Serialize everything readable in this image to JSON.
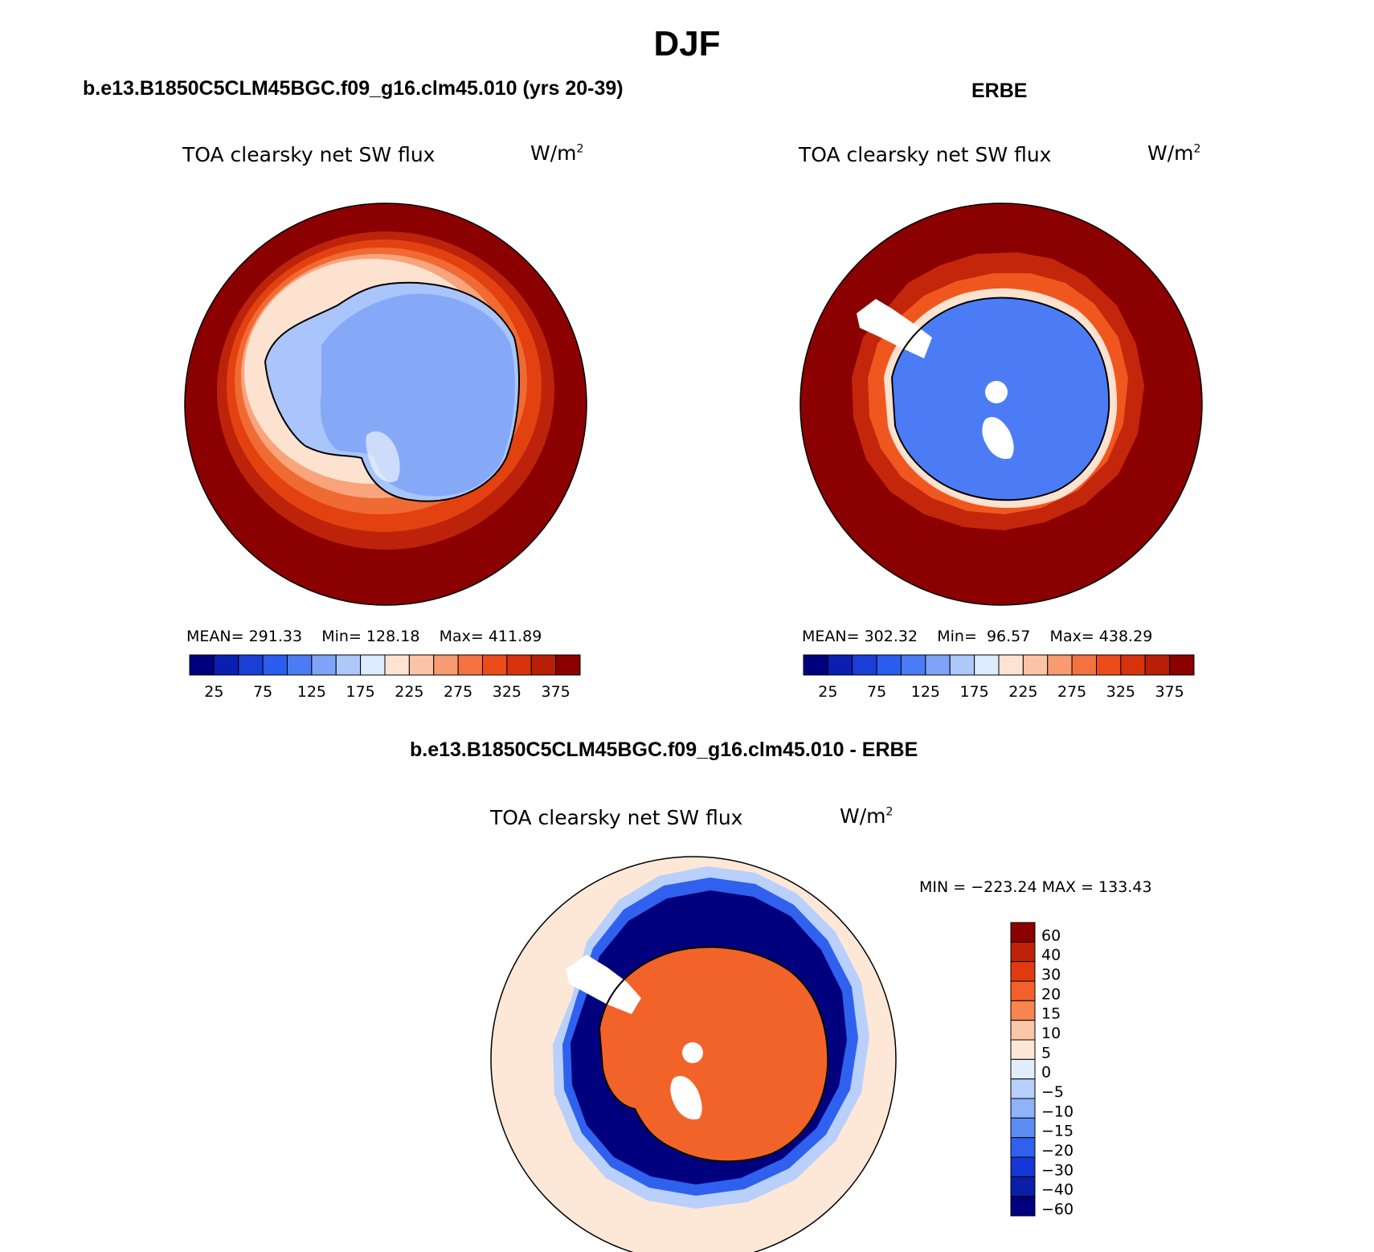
{
  "main_title": "DJF",
  "panels": [
    {
      "case_title": "b.e13.B1850C5CLM45BGC.f09_g16.clm45.010 (yrs 20-39)",
      "variable_label": "TOA clearsky net SW flux",
      "units": "W/m",
      "units_exponent": "2",
      "stats": {
        "mean_label": "MEAN=",
        "mean": "291.33",
        "min_label": "Min=",
        "min": "128.18",
        "max_label": "Max=",
        "max": "411.89"
      }
    },
    {
      "case_title": "ERBE",
      "variable_label": "TOA clearsky net SW flux",
      "units": "W/m",
      "units_exponent": "2",
      "stats": {
        "mean_label": "MEAN=",
        "mean": "302.32",
        "min_label": "Min=",
        "min": "96.57",
        "max_label": "Max=",
        "max": "438.29"
      }
    },
    {
      "case_title": "b.e13.B1850C5CLM45BGC.f09_g16.clm45.010 - ERBE",
      "variable_label": "TOA clearsky net SW flux",
      "units": "W/m",
      "units_exponent": "2",
      "stats_text": "MIN = −223.24 MAX = 133.43"
    }
  ],
  "chart_data": [
    {
      "type": "heatmap",
      "projection": "south polar stereographic",
      "colorbar": {
        "orientation": "horizontal",
        "tick_labels": [
          "25",
          "75",
          "125",
          "175",
          "225",
          "275",
          "325",
          "375"
        ],
        "levels": [
          25,
          50,
          75,
          100,
          125,
          150,
          175,
          200,
          225,
          250,
          275,
          300,
          325,
          350,
          375
        ],
        "colors": [
          "#00007f",
          "#0a1fb2",
          "#1a3fd6",
          "#2a5cf0",
          "#4c7cf5",
          "#7ea3f8",
          "#adc8fb",
          "#dcebfd",
          "#fde4d2",
          "#fcc4a6",
          "#f89a72",
          "#f4723f",
          "#ec4c1a",
          "#d6330d",
          "#b81f09",
          "#8b0000"
        ]
      },
      "field": {
        "ocean_max_zone": "#8b0000",
        "antarctic_interior": "#86a9f7",
        "coastal_band": [
          "#fce2d0",
          "#f9a47c",
          "#f06a34",
          "#d4300c"
        ]
      }
    },
    {
      "type": "heatmap",
      "projection": "south polar stereographic",
      "colorbar": {
        "orientation": "horizontal",
        "tick_labels": [
          "25",
          "75",
          "125",
          "175",
          "225",
          "275",
          "325",
          "375"
        ],
        "levels": [
          25,
          50,
          75,
          100,
          125,
          150,
          175,
          200,
          225,
          250,
          275,
          300,
          325,
          350,
          375
        ],
        "colors": [
          "#00007f",
          "#0a1fb2",
          "#1a3fd6",
          "#2a5cf0",
          "#4c7cf5",
          "#7ea3f8",
          "#adc8fb",
          "#dcebfd",
          "#fde4d2",
          "#fcc4a6",
          "#f89a72",
          "#f4723f",
          "#ec4c1a",
          "#d6330d",
          "#b81f09",
          "#8b0000"
        ]
      },
      "field": {
        "ocean_max_zone": "#8b0000",
        "antarctic_interior": "#4c7cf5",
        "missing_data": "#ffffff"
      }
    },
    {
      "type": "heatmap",
      "projection": "south polar stereographic",
      "colorbar": {
        "orientation": "vertical",
        "tick_labels": [
          "60",
          "40",
          "30",
          "20",
          "15",
          "10",
          "5",
          "0",
          "−5",
          "−10",
          "−15",
          "−20",
          "−30",
          "−40",
          "−60"
        ],
        "colors_top_to_bottom": [
          "#8b0000",
          "#c0210b",
          "#e23a10",
          "#f4602a",
          "#f7854f",
          "#fbc7a8",
          "#fde7d6",
          "#e3eefc",
          "#b8d0fb",
          "#8fb2f8",
          "#5d8cf5",
          "#2f61ee",
          "#1437d6",
          "#0a1ea6",
          "#00007f"
        ]
      },
      "field": {
        "outer_ocean": "#fde7d6",
        "negative_ring": "#00007f",
        "antarctic_interior": "#f2632a"
      }
    }
  ]
}
